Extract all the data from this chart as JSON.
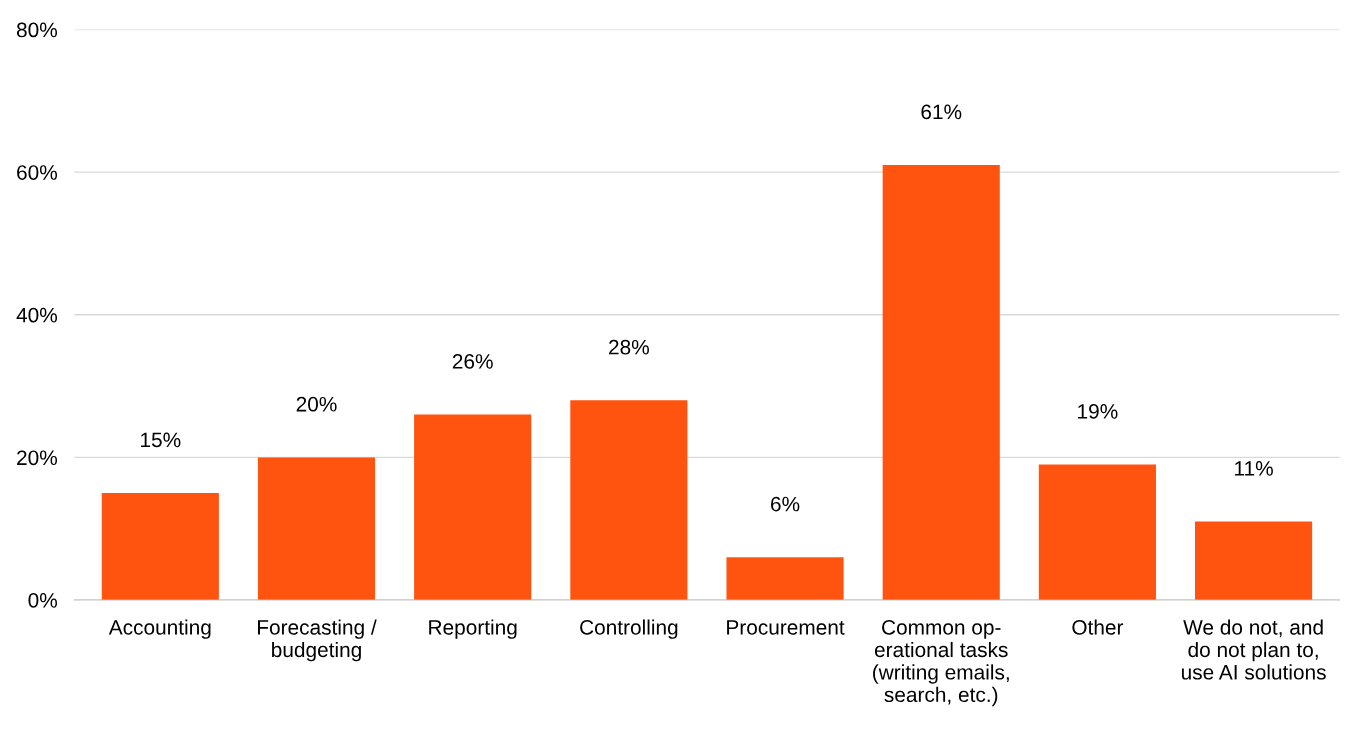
{
  "chart_data": {
    "type": "bar",
    "categories": [
      "Accounting",
      "Forecasting /\nbudgeting",
      "Reporting",
      "Controlling",
      "Procurement",
      "Common op-\nerational tasks\n(writing emails,\nsearch, etc.)",
      "Other",
      "We do not, and\ndo not plan to,\nuse AI solutions"
    ],
    "values": [
      15,
      20,
      26,
      28,
      6,
      61,
      19,
      11
    ],
    "color": "#ff5310",
    "ylim": [
      0,
      80
    ],
    "yticks": [
      {
        "value": 0,
        "label": "0%"
      },
      {
        "value": 20,
        "label": "20%"
      },
      {
        "value": 40,
        "label": "40%"
      },
      {
        "value": 60,
        "label": "60%"
      },
      {
        "value": 80,
        "label": "80%"
      }
    ],
    "grid": "y",
    "value_labels": [
      "15%",
      "20%",
      "26%",
      "28%",
      "6%",
      "61%",
      "19%",
      "11%"
    ]
  }
}
